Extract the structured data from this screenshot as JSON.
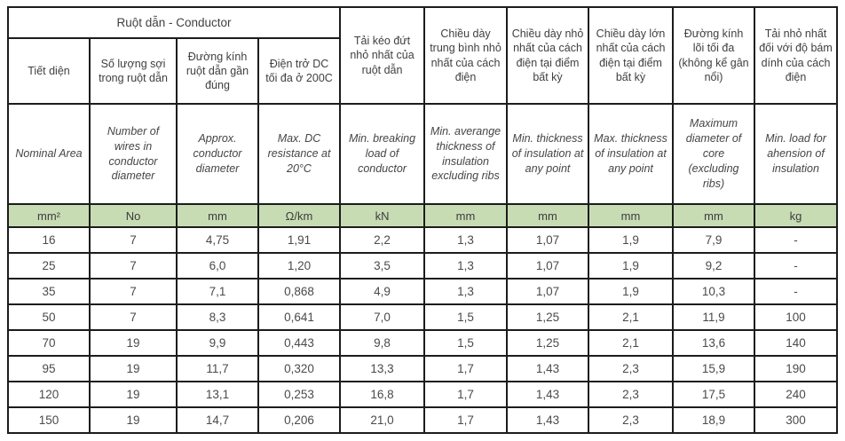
{
  "page": {
    "background_color": "#ffffff"
  },
  "table": {
    "group_header": "Ruột dẫn - Conductor",
    "unit_row_color": "#c8dcb4",
    "border_color": "#1c1c1c",
    "columns": [
      {
        "vi": "Tiết diện",
        "en": "Nominal Area",
        "unit": "mm²"
      },
      {
        "vi": "Số lượng sợi trong ruột dẫn",
        "en": "Number of wires in conductor diameter",
        "unit": "No"
      },
      {
        "vi": "Đường kính ruột dẫn gần đúng",
        "en": "Approx. conductor diameter",
        "unit": "mm"
      },
      {
        "vi": "Điện trở DC tối đa ở 200C",
        "en": "Max. DC resistance at 20°C",
        "unit": "Ω/km"
      },
      {
        "vi": "Tải kéo đứt nhỏ nhất của ruột dẫn",
        "en": "Min. breaking load of conductor",
        "unit": "kN"
      },
      {
        "vi": "Chiều dày trung bình nhỏ nhất của cách điện",
        "en": "Min. averange thickness of insulation excluding ribs",
        "unit": "mm"
      },
      {
        "vi": "Chiều dày nhỏ nhất của cách điện tại điểm bất kỳ",
        "en": "Min. thickness of insulation at any point",
        "unit": "mm"
      },
      {
        "vi": "Chiều dày lớn nhất của cách điện tại điểm bất kỳ",
        "en": "Max. thickness of insulation at any point",
        "unit": "mm"
      },
      {
        "vi": "Đường kính lõi tối đa (không kể gân nổi)",
        "en": "Maximum diameter of core (excluding ribs)",
        "unit": "mm"
      },
      {
        "vi": "Tải nhỏ nhất đối với độ bám dính của cách điện",
        "en": "Min. load for ahension of insulation",
        "unit": "kg"
      }
    ],
    "rows": [
      [
        "16",
        "7",
        "4,75",
        "1,91",
        "2,2",
        "1,3",
        "1,07",
        "1,9",
        "7,9",
        "-"
      ],
      [
        "25",
        "7",
        "6,0",
        "1,20",
        "3,5",
        "1,3",
        "1,07",
        "1,9",
        "9,2",
        "-"
      ],
      [
        "35",
        "7",
        "7,1",
        "0,868",
        "4,9",
        "1,3",
        "1,07",
        "1,9",
        "10,3",
        "-"
      ],
      [
        "50",
        "7",
        "8,3",
        "0,641",
        "7,0",
        "1,5",
        "1,25",
        "2,1",
        "11,9",
        "100"
      ],
      [
        "70",
        "19",
        "9,9",
        "0,443",
        "9,8",
        "1,5",
        "1,25",
        "2,1",
        "13,6",
        "140"
      ],
      [
        "95",
        "19",
        "11,7",
        "0,320",
        "13,3",
        "1,7",
        "1,43",
        "2,3",
        "15,9",
        "190"
      ],
      [
        "120",
        "19",
        "13,1",
        "0,253",
        "16,8",
        "1,7",
        "1,43",
        "2,3",
        "17,5",
        "240"
      ],
      [
        "150",
        "19",
        "14,7",
        "0,206",
        "21,0",
        "1,7",
        "1,43",
        "2,3",
        "18,9",
        "300"
      ]
    ]
  }
}
